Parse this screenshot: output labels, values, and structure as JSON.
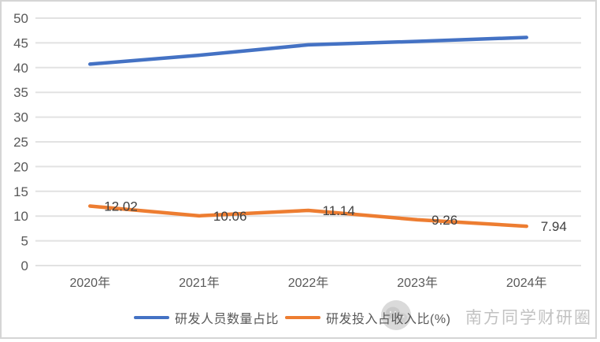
{
  "chart_data": {
    "type": "line",
    "title": "",
    "xlabel": "",
    "ylabel": "",
    "categories": [
      "2020年",
      "2021年",
      "2022年",
      "2023年",
      "2024年"
    ],
    "series": [
      {
        "name": "研发人员数量占比",
        "color": "#4472C4",
        "values": [
          40.7,
          42.5,
          44.6,
          45.3,
          46.1
        ],
        "show_data_labels": false,
        "data_labels": []
      },
      {
        "name": "研发投入占收入比(%)",
        "color": "#ED7D31",
        "values": [
          12.02,
          10.06,
          11.14,
          9.26,
          7.94
        ],
        "show_data_labels": true,
        "data_labels": [
          "12.02",
          "10.06",
          "11.14",
          "9.26",
          "7.94"
        ]
      }
    ],
    "ylim": [
      0,
      50
    ],
    "yticks": [
      0,
      5,
      10,
      15,
      20,
      25,
      30,
      35,
      40,
      45,
      50
    ],
    "grid": true,
    "legend_position": "bottom",
    "gridline_color": "#E2E2E2",
    "axis_label_color": "#595959",
    "data_label_color": "#404040"
  },
  "watermark": {
    "text": "南方同学财研圈",
    "icon": "wechat-avatar-icon",
    "color": "#C2C2C2"
  }
}
